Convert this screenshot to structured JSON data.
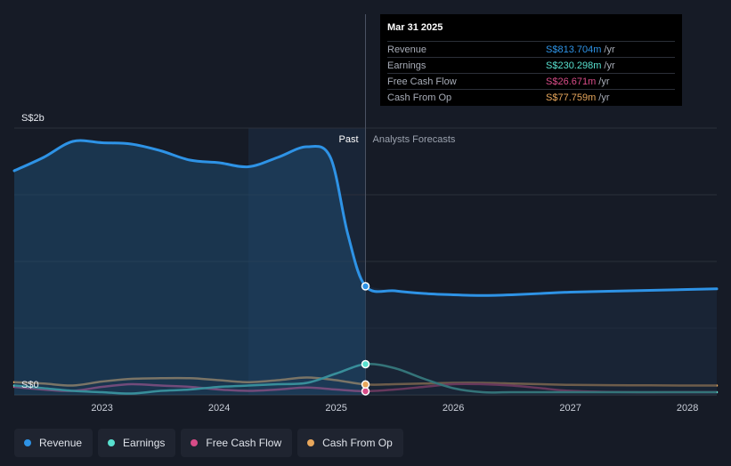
{
  "chart_data": {
    "type": "area",
    "ylabel_top": "S$2b",
    "ylabel_bottom": "S$0",
    "ylim": [
      0,
      2000
    ],
    "xlim": [
      2022.25,
      2028.25
    ],
    "x_ticks": [
      "2023",
      "2024",
      "2025",
      "2026",
      "2027",
      "2028"
    ],
    "x_tick_values": [
      2023,
      2024,
      2025,
      2026,
      2027,
      2028
    ],
    "grid": true,
    "past_label": "Past",
    "forecast_label": "Analysts Forecasts",
    "past_region_start": 2024.25,
    "divider_x": 2025.25,
    "series": [
      {
        "name": "Revenue",
        "color": "#2e93e6",
        "filled": true,
        "points": [
          [
            2022.25,
            1680
          ],
          [
            2022.5,
            1780
          ],
          [
            2022.75,
            1900
          ],
          [
            2023.0,
            1890
          ],
          [
            2023.25,
            1880
          ],
          [
            2023.5,
            1830
          ],
          [
            2023.75,
            1760
          ],
          [
            2024.0,
            1740
          ],
          [
            2024.25,
            1710
          ],
          [
            2024.5,
            1780
          ],
          [
            2024.75,
            1860
          ],
          [
            2024.95,
            1780
          ],
          [
            2025.1,
            1200
          ],
          [
            2025.25,
            814
          ],
          [
            2025.5,
            780
          ],
          [
            2025.75,
            760
          ],
          [
            2026.0,
            750
          ],
          [
            2026.25,
            745
          ],
          [
            2026.5,
            750
          ],
          [
            2026.75,
            760
          ],
          [
            2027.0,
            770
          ],
          [
            2027.5,
            780
          ],
          [
            2028.0,
            790
          ],
          [
            2028.25,
            795
          ]
        ]
      },
      {
        "name": "Earnings",
        "color": "#58e0cf",
        "filled": false,
        "points": [
          [
            2022.25,
            70
          ],
          [
            2022.5,
            50
          ],
          [
            2022.75,
            30
          ],
          [
            2023.0,
            20
          ],
          [
            2023.25,
            10
          ],
          [
            2023.5,
            30
          ],
          [
            2023.75,
            40
          ],
          [
            2024.0,
            60
          ],
          [
            2024.25,
            70
          ],
          [
            2024.5,
            80
          ],
          [
            2024.75,
            90
          ],
          [
            2025.0,
            160
          ],
          [
            2025.25,
            230
          ],
          [
            2025.5,
            200
          ],
          [
            2025.75,
            120
          ],
          [
            2026.0,
            50
          ],
          [
            2026.25,
            20
          ],
          [
            2026.5,
            20
          ],
          [
            2027.0,
            20
          ],
          [
            2027.5,
            20
          ],
          [
            2028.0,
            20
          ],
          [
            2028.25,
            20
          ]
        ]
      },
      {
        "name": "Free Cash Flow",
        "color": "#d84c88",
        "filled": false,
        "points": [
          [
            2022.25,
            60
          ],
          [
            2022.5,
            40
          ],
          [
            2022.75,
            30
          ],
          [
            2023.0,
            60
          ],
          [
            2023.25,
            80
          ],
          [
            2023.5,
            70
          ],
          [
            2023.75,
            60
          ],
          [
            2024.0,
            40
          ],
          [
            2024.25,
            30
          ],
          [
            2024.5,
            40
          ],
          [
            2024.75,
            55
          ],
          [
            2025.0,
            40
          ],
          [
            2025.25,
            27
          ],
          [
            2025.5,
            40
          ],
          [
            2025.75,
            60
          ],
          [
            2026.0,
            80
          ],
          [
            2026.25,
            80
          ],
          [
            2026.5,
            70
          ],
          [
            2026.75,
            50
          ],
          [
            2027.0,
            30
          ],
          [
            2027.5,
            20
          ],
          [
            2028.0,
            20
          ],
          [
            2028.25,
            20
          ]
        ]
      },
      {
        "name": "Cash From Op",
        "color": "#e8a75c",
        "filled": false,
        "points": [
          [
            2022.25,
            95
          ],
          [
            2022.5,
            85
          ],
          [
            2022.75,
            70
          ],
          [
            2023.0,
            100
          ],
          [
            2023.25,
            120
          ],
          [
            2023.5,
            125
          ],
          [
            2023.75,
            125
          ],
          [
            2024.0,
            110
          ],
          [
            2024.25,
            95
          ],
          [
            2024.5,
            110
          ],
          [
            2024.75,
            130
          ],
          [
            2025.0,
            110
          ],
          [
            2025.25,
            78
          ],
          [
            2025.5,
            80
          ],
          [
            2025.75,
            85
          ],
          [
            2026.0,
            90
          ],
          [
            2026.25,
            90
          ],
          [
            2026.5,
            85
          ],
          [
            2026.75,
            80
          ],
          [
            2027.0,
            75
          ],
          [
            2027.5,
            72
          ],
          [
            2028.0,
            70
          ],
          [
            2028.25,
            70
          ]
        ]
      }
    ],
    "highlight_x": 2025.25,
    "highlight_values": [
      814,
      230,
      27,
      78
    ]
  },
  "tooltip": {
    "date": "Mar 31 2025",
    "rows": [
      {
        "label": "Revenue",
        "value": "S$813.704m",
        "unit": "/yr",
        "color": "#2e93e6"
      },
      {
        "label": "Earnings",
        "value": "S$230.298m",
        "unit": "/yr",
        "color": "#58e0cf"
      },
      {
        "label": "Free Cash Flow",
        "value": "S$26.671m",
        "unit": "/yr",
        "color": "#d84c88"
      },
      {
        "label": "Cash From Op",
        "value": "S$77.759m",
        "unit": "/yr",
        "color": "#e8a75c"
      }
    ]
  },
  "legend": [
    {
      "label": "Revenue",
      "color": "#2e93e6"
    },
    {
      "label": "Earnings",
      "color": "#58e0cf"
    },
    {
      "label": "Free Cash Flow",
      "color": "#d84c88"
    },
    {
      "label": "Cash From Op",
      "color": "#e8a75c"
    }
  ]
}
